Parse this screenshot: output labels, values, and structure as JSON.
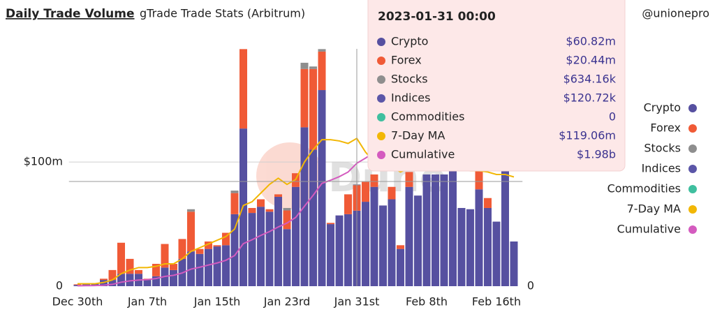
{
  "chart_data": {
    "type": "bar",
    "title": "Daily Trade Volume",
    "subtitle": "gTrade Trade Stats (Arbitrum)",
    "author": "@unionepro",
    "watermark": "Dune",
    "tooltip_title": "2023-01-31 00:00",
    "legend": "right",
    "grid": true,
    "categories": [
      "Dec 30th",
      null,
      null,
      null,
      null,
      null,
      null,
      null,
      "Jan 7th",
      null,
      null,
      null,
      null,
      null,
      null,
      null,
      "Jan 15th",
      null,
      null,
      null,
      null,
      null,
      null,
      null,
      "Jan 23rd",
      null,
      null,
      null,
      null,
      null,
      null,
      null,
      "Jan 31st",
      null,
      null,
      null,
      null,
      null,
      null,
      null,
      "Feb 8th",
      null,
      null,
      null,
      null,
      null,
      null,
      null,
      "Feb 16th",
      null,
      null
    ],
    "ylim": [
      0,
      230
    ],
    "yticks": [
      0,
      {
        "value": 100,
        "label": "$100m"
      }
    ],
    "y2lim": [
      0,
      4600
    ],
    "y2ticks": [
      0
    ],
    "series": [
      {
        "name": "Crypto",
        "type": "bar",
        "color": "#5650a0",
        "values": [
          1,
          1.5,
          2,
          5,
          5,
          10,
          10,
          10,
          5,
          8,
          15,
          13,
          22,
          28,
          26,
          30,
          32,
          33,
          58,
          127,
          59,
          64,
          60,
          72,
          46,
          80,
          128,
          110,
          158,
          50,
          57,
          58,
          60.82,
          68,
          80,
          65,
          70,
          30,
          80,
          73,
          90,
          90,
          90,
          93,
          63,
          62,
          78,
          63,
          52,
          93,
          36
        ],
        "value_labels": [
          null,
          null,
          null,
          null,
          null,
          null,
          null,
          null,
          null,
          null,
          null,
          null,
          null,
          null,
          null,
          null,
          null,
          null,
          null,
          null,
          null,
          null,
          null,
          null,
          null,
          null,
          null,
          null,
          null,
          null,
          null,
          null,
          "$60.82m",
          null,
          null,
          null,
          null,
          null,
          null,
          null,
          null,
          null,
          null,
          null,
          null,
          null,
          null,
          null,
          null,
          null,
          null
        ]
      },
      {
        "name": "Forex",
        "type": "bar",
        "color": "#f05a36",
        "values": [
          0.5,
          0,
          0,
          1,
          8,
          25,
          12,
          3,
          1,
          10,
          19,
          5,
          16,
          32,
          4,
          6,
          1,
          10,
          17,
          64,
          4,
          6,
          2,
          2,
          15,
          11,
          47,
          65,
          31,
          1,
          0,
          16,
          20.44,
          16,
          10,
          0,
          10,
          3,
          12,
          0,
          0,
          0,
          0,
          0,
          0,
          0,
          15,
          8,
          0,
          0,
          0
        ],
        "value_labels": [
          null,
          null,
          null,
          null,
          null,
          null,
          null,
          null,
          null,
          null,
          null,
          null,
          null,
          null,
          null,
          null,
          null,
          null,
          null,
          null,
          null,
          null,
          null,
          null,
          null,
          null,
          null,
          null,
          null,
          null,
          null,
          null,
          "$20.44m",
          null,
          null,
          null,
          null,
          null,
          null,
          null,
          null,
          null,
          null,
          null,
          null,
          null,
          null,
          null,
          null,
          null,
          null
        ]
      },
      {
        "name": "Stocks",
        "type": "bar",
        "color": "#8e8e8e",
        "values": [
          0,
          0,
          0,
          0,
          0,
          0,
          0,
          0,
          0,
          0,
          0,
          0,
          0,
          2,
          0,
          0,
          0,
          0,
          2,
          0,
          0,
          0,
          0,
          0,
          2,
          0,
          5,
          2,
          2,
          0,
          0,
          0,
          0.63416,
          0,
          0,
          0,
          0,
          0,
          0,
          0,
          0,
          0,
          0,
          0,
          0,
          0,
          0,
          0,
          0,
          0,
          0
        ],
        "value_labels": [
          null,
          null,
          null,
          null,
          null,
          null,
          null,
          null,
          null,
          null,
          null,
          null,
          null,
          null,
          null,
          null,
          null,
          null,
          null,
          null,
          null,
          null,
          null,
          null,
          null,
          null,
          null,
          null,
          null,
          null,
          null,
          null,
          "$634.16k",
          null,
          null,
          null,
          null,
          null,
          null,
          null,
          null,
          null,
          null,
          null,
          null,
          null,
          null,
          null,
          null,
          null,
          null
        ]
      },
      {
        "name": "Indices",
        "type": "bar",
        "color": "#5b56a8",
        "values": [
          0,
          0,
          0,
          0,
          0,
          0,
          0,
          0,
          0,
          0,
          0,
          0,
          0,
          0,
          0,
          0,
          0,
          0,
          0,
          0,
          0,
          0,
          0,
          0,
          0,
          0,
          0,
          0,
          0,
          0,
          0,
          0,
          0.12072,
          0,
          0,
          0,
          0,
          0,
          0,
          0,
          0,
          0,
          0,
          0,
          0,
          0,
          0,
          0,
          0,
          0,
          0
        ],
        "value_labels": [
          null,
          null,
          null,
          null,
          null,
          null,
          null,
          null,
          null,
          null,
          null,
          null,
          null,
          null,
          null,
          null,
          null,
          null,
          null,
          null,
          null,
          null,
          null,
          null,
          null,
          null,
          null,
          null,
          null,
          null,
          null,
          null,
          "$120.72k",
          null,
          null,
          null,
          null,
          null,
          null,
          null,
          null,
          null,
          null,
          null,
          null,
          null,
          null,
          null,
          null,
          null,
          null
        ]
      },
      {
        "name": "Commodities",
        "type": "bar",
        "color": "#3fbf9f",
        "values": [
          0,
          0,
          0,
          0,
          0,
          0,
          0,
          0,
          0,
          0,
          0,
          0,
          0,
          0,
          0,
          0,
          0,
          0,
          0,
          0,
          0,
          0,
          0,
          0,
          0,
          0,
          0,
          0,
          0,
          0,
          0,
          0,
          0,
          0,
          0,
          0,
          0,
          0,
          0,
          0,
          0,
          0,
          0,
          0,
          0,
          0,
          0,
          0,
          0,
          0,
          0
        ],
        "value_labels": [
          null,
          null,
          null,
          null,
          null,
          null,
          null,
          null,
          null,
          null,
          null,
          null,
          null,
          null,
          null,
          null,
          null,
          null,
          null,
          null,
          null,
          null,
          null,
          null,
          null,
          null,
          null,
          null,
          null,
          null,
          null,
          null,
          "0",
          null,
          null,
          null,
          null,
          null,
          null,
          null,
          null,
          null,
          null,
          null,
          null,
          null,
          null,
          null,
          null,
          null,
          null
        ]
      },
      {
        "name": "7-Day MA",
        "type": "line",
        "color": "#f2b705",
        "values": [
          2,
          2,
          2,
          3,
          5,
          10,
          13,
          15,
          15,
          16,
          18,
          18,
          22,
          28,
          31,
          34,
          37,
          40,
          46,
          65,
          68,
          75,
          82,
          87,
          82,
          86,
          100,
          110,
          118,
          118,
          117,
          115,
          119.06,
          108,
          100,
          96,
          96,
          92,
          95,
          100,
          98,
          96,
          95,
          95,
          94,
          93,
          93,
          92,
          90,
          90,
          88
        ],
        "value_labels": [
          null,
          null,
          null,
          null,
          null,
          null,
          null,
          null,
          null,
          null,
          null,
          null,
          null,
          null,
          null,
          null,
          null,
          null,
          null,
          null,
          null,
          null,
          null,
          null,
          null,
          null,
          null,
          null,
          null,
          null,
          null,
          null,
          "$119.06m",
          null,
          null,
          null,
          null,
          null,
          null,
          null,
          null,
          null,
          null,
          null,
          null,
          null,
          null,
          null,
          null,
          null,
          null
        ]
      },
      {
        "name": "Cumulative",
        "type": "line",
        "axis": "y2",
        "color": "#d45bbf",
        "values": [
          6,
          8,
          10,
          16,
          29,
          64,
          86,
          99,
          105,
          123,
          157,
          175,
          213,
          275,
          305,
          341,
          374,
          417,
          494,
          685,
          748,
          818,
          880,
          954,
          1017,
          1108,
          1288,
          1465,
          1656,
          1707,
          1765,
          1839,
          1980,
          2064,
          2154,
          2219,
          2299,
          2332,
          2425,
          2498,
          2588,
          2678,
          2768,
          2861,
          2924,
          2986,
          3079,
          3150,
          3202,
          3295,
          3331
        ],
        "value_labels": [
          null,
          null,
          null,
          null,
          null,
          null,
          null,
          null,
          null,
          null,
          null,
          null,
          null,
          null,
          null,
          null,
          null,
          null,
          null,
          null,
          null,
          null,
          null,
          null,
          null,
          null,
          null,
          null,
          null,
          null,
          null,
          null,
          "$1.98b",
          null,
          null,
          null,
          null,
          null,
          null,
          null,
          null,
          null,
          null,
          null,
          null,
          null,
          null,
          null,
          null,
          null,
          null
        ]
      }
    ]
  }
}
